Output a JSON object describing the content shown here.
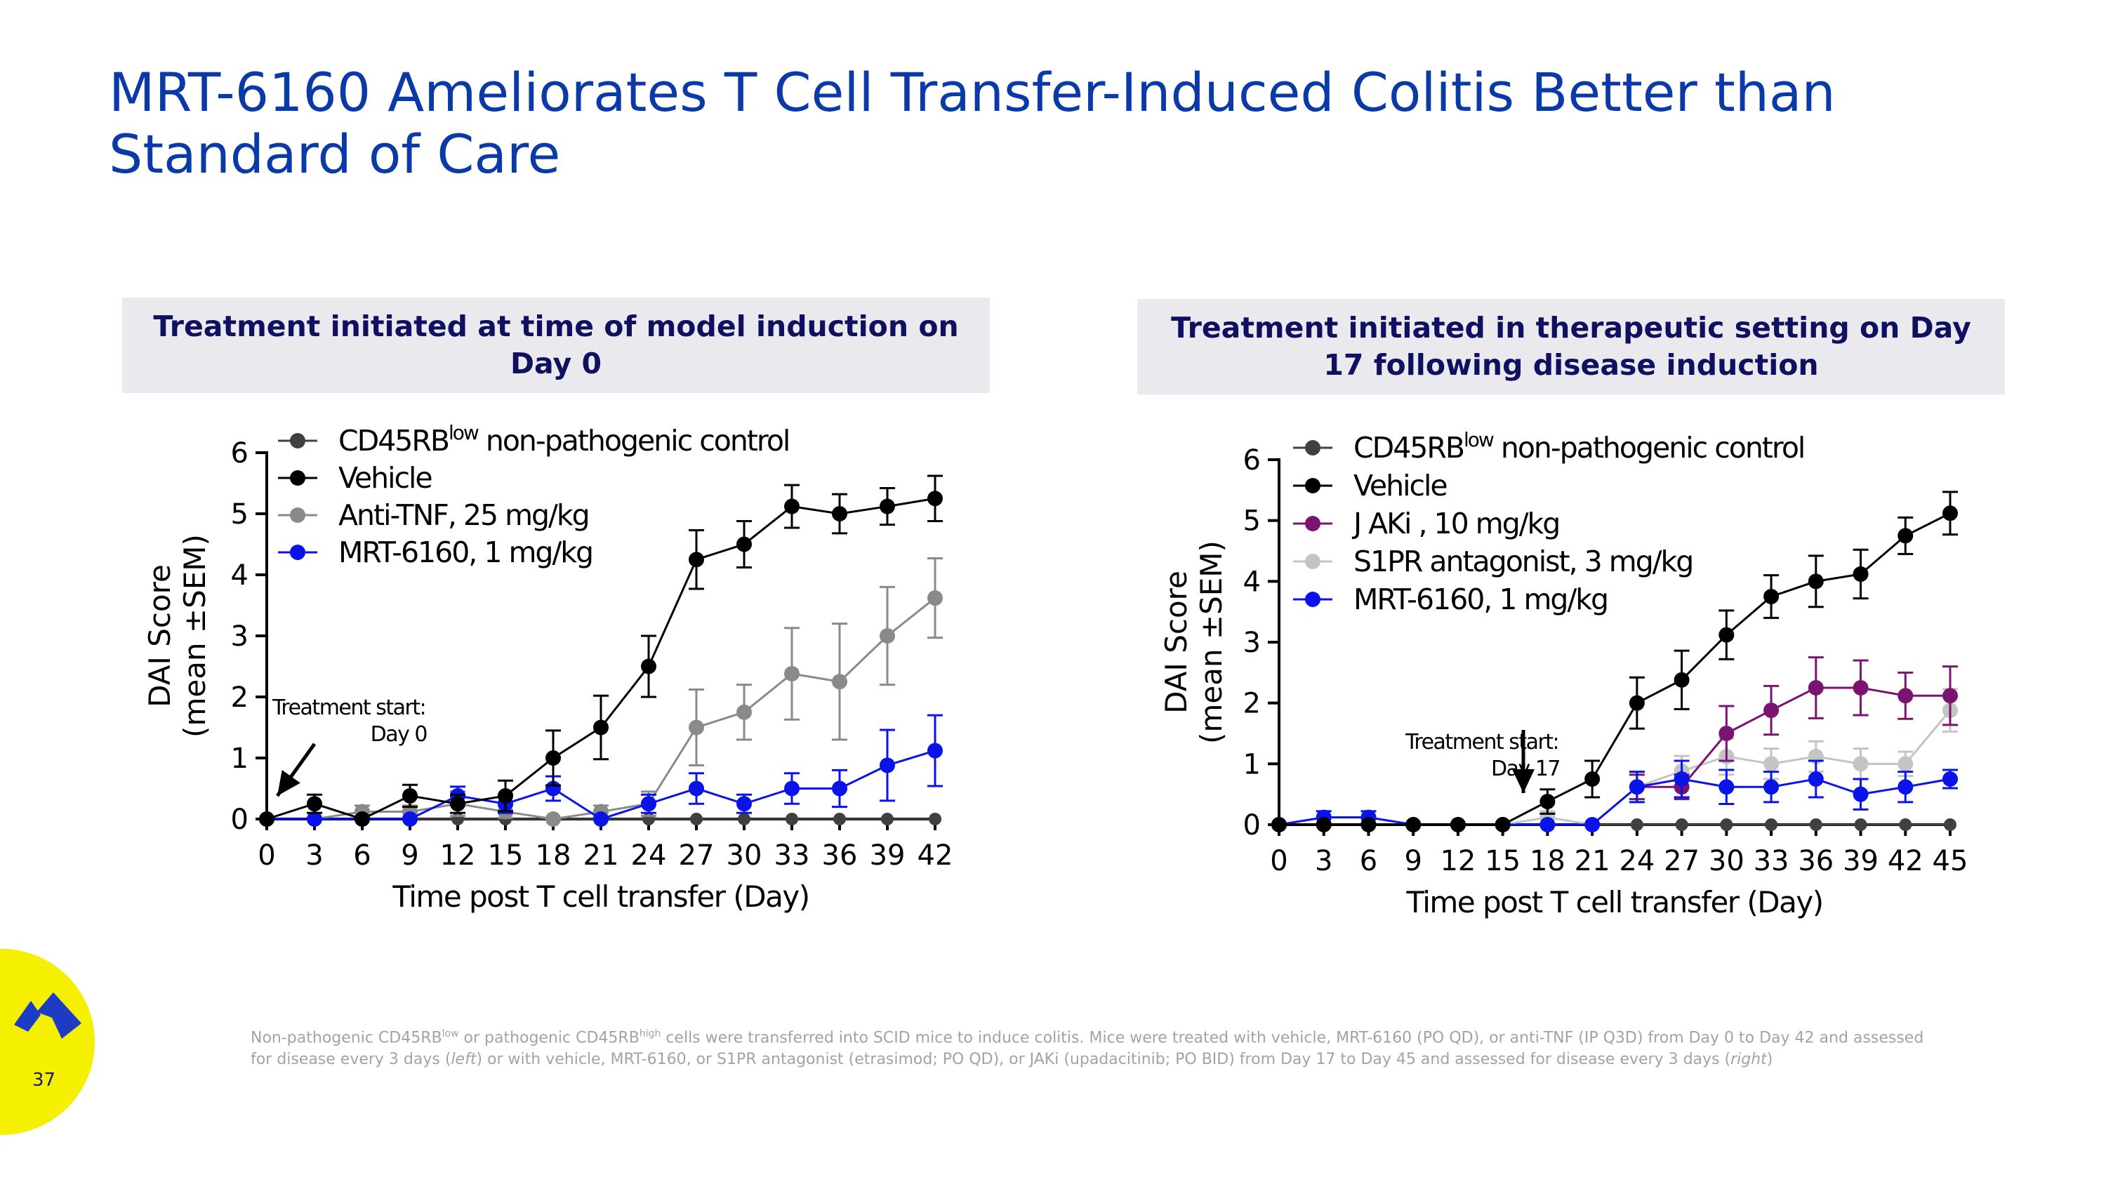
{
  "slide": {
    "title": "MRT-6160 Ameliorates T Cell Transfer-Induced Colitis Better than Standard of Care",
    "page_number": "37",
    "footnote": {
      "t1": "Non-pathogenic CD45RB",
      "s1": "low",
      "t2": " or pathogenic CD45RB",
      "s2": "high",
      "t3": " cells were transferred into SCID mice to induce colitis. Mice were treated with vehicle, MRT-6160 (PO QD), or anti-TNF (IP Q3D) from Day 0 to Day 42 and assessed for disease every 3 days (",
      "i1": "left",
      "t4": ") or with vehicle, MRT-6160, or S1PR antagonist (etrasimod; PO QD), or JAKi (upadacitinib; PO BID) from Day 17 to Day 45 and assessed for disease every 3 days (",
      "i2": "right",
      "t5": ")"
    },
    "logo": {
      "color": "#1d3cc6",
      "icon": "company-logo-icon",
      "background": "#f5f000"
    }
  },
  "chart_data": [
    {
      "type": "line",
      "header": "Treatment initiated at time of model induction on Day 0",
      "xlabel": "Time post T cell transfer (Day)",
      "ylabel_line1": "DAI Score",
      "ylabel_line2": "(mean ±SEM)",
      "xlim": [
        0,
        42
      ],
      "ylim": [
        0,
        6
      ],
      "x_ticks": [
        0,
        3,
        6,
        9,
        12,
        15,
        18,
        21,
        24,
        27,
        30,
        33,
        36,
        39,
        42
      ],
      "y_ticks": [
        0,
        1,
        2,
        3,
        4,
        5,
        6
      ],
      "x": [
        0,
        3,
        6,
        9,
        12,
        15,
        18,
        21,
        24,
        27,
        30,
        33,
        36,
        39,
        42
      ],
      "annotation": {
        "line1": "Treatment start:",
        "line2": "Day 0",
        "arrow_day": 0
      },
      "legend_position": "top-left",
      "series": [
        {
          "name": "CD45RB",
          "sup": "low",
          "suffix": " non-pathogenic control",
          "color": "#404040",
          "marker_r": 9,
          "values": [
            0,
            0,
            0,
            0,
            0,
            0,
            0,
            0,
            0,
            0,
            0,
            0,
            0,
            0,
            0
          ],
          "err": [
            0,
            0,
            0,
            0,
            0,
            0,
            0,
            0,
            0,
            0,
            0,
            0,
            0,
            0,
            0
          ]
        },
        {
          "name": "Anti-TNF, 25 mg/kg",
          "sup": "",
          "suffix": "",
          "color": "#8a8a8a",
          "marker_r": 11,
          "values": [
            0,
            0,
            0.12,
            0.12,
            0.25,
            0.12,
            0,
            0.12,
            0.25,
            1.5,
            1.75,
            2.38,
            2.25,
            3.0,
            3.62
          ],
          "err": [
            0,
            0,
            0.1,
            0.1,
            0.2,
            0.1,
            0,
            0.1,
            0.2,
            0.62,
            0.45,
            0.75,
            0.95,
            0.8,
            0.65
          ]
        },
        {
          "name": "MRT-6160, 1 mg/kg",
          "sup": "",
          "suffix": "",
          "color": "#0a14e8",
          "marker_r": 11,
          "values": [
            0,
            0,
            0,
            0,
            0.38,
            0.25,
            0.5,
            0,
            0.25,
            0.5,
            0.25,
            0.5,
            0.5,
            0.88,
            1.12
          ],
          "err": [
            0,
            0,
            0,
            0,
            0.15,
            0.15,
            0.2,
            0,
            0.15,
            0.25,
            0.15,
            0.25,
            0.3,
            0.58,
            0.58
          ]
        },
        {
          "name": "Vehicle",
          "sup": "",
          "suffix": "",
          "color": "#000000",
          "marker_r": 11,
          "values": [
            0,
            0.25,
            0,
            0.38,
            0.25,
            0.38,
            1.0,
            1.5,
            2.5,
            4.25,
            4.5,
            5.12,
            5.0,
            5.12,
            5.25
          ],
          "err": [
            0,
            0.15,
            0,
            0.18,
            0.15,
            0.25,
            0.45,
            0.52,
            0.5,
            0.48,
            0.38,
            0.35,
            0.32,
            0.3,
            0.37
          ]
        }
      ],
      "legend_order": [
        0,
        3,
        1,
        2
      ]
    },
    {
      "type": "line",
      "header": "Treatment initiated in therapeutic setting on Day 17 following disease induction",
      "xlabel": "Time post T cell transfer (Day)",
      "ylabel_line1": "DAI Score",
      "ylabel_line2": "(mean ±SEM)",
      "xlim": [
        0,
        45
      ],
      "ylim": [
        0,
        6
      ],
      "x_ticks": [
        0,
        3,
        6,
        9,
        12,
        15,
        18,
        21,
        24,
        27,
        30,
        33,
        36,
        39,
        42,
        45
      ],
      "y_ticks": [
        0,
        1,
        2,
        3,
        4,
        5,
        6
      ],
      "x": [
        0,
        3,
        6,
        9,
        12,
        15,
        18,
        21,
        24,
        27,
        30,
        33,
        36,
        39,
        42,
        45
      ],
      "annotation": {
        "line1": "Treatment start:",
        "line2": "Day 17",
        "arrow_day": 16.5
      },
      "legend_position": "top-left",
      "series": [
        {
          "name": "CD45RB",
          "sup": "low",
          "suffix": " non-pathogenic control",
          "color": "#404040",
          "marker_r": 9,
          "values": [
            0,
            0,
            0,
            0,
            0,
            0,
            0,
            0,
            0,
            0,
            0,
            0,
            0,
            0,
            0,
            0
          ],
          "err": [
            0,
            0,
            0,
            0,
            0,
            0,
            0,
            0,
            0,
            0,
            0,
            0,
            0,
            0,
            0,
            0
          ]
        },
        {
          "name": "S1PR antagonist, 3 mg/kg",
          "sup": "",
          "suffix": "",
          "color": "#c4c4c4",
          "marker_r": 11,
          "values": [
            0,
            0.12,
            0.12,
            0,
            0,
            0,
            0.12,
            0,
            0.62,
            0.88,
            1.12,
            1.0,
            1.12,
            1.0,
            1.0,
            1.88
          ],
          "err": [
            0,
            0.1,
            0.1,
            0,
            0,
            0,
            0.1,
            0,
            0.25,
            0.25,
            0.3,
            0.25,
            0.25,
            0.25,
            0.2,
            0.35
          ]
        },
        {
          "name": "J AKi , 10 mg/kg",
          "sup": "",
          "suffix": "",
          "color": "#7a1470",
          "marker_r": 11,
          "values": [
            null,
            null,
            null,
            null,
            null,
            null,
            null,
            null,
            0.62,
            0.62,
            1.5,
            1.88,
            2.25,
            2.25,
            2.12,
            2.12
          ],
          "err": [
            0,
            0,
            0,
            0,
            0,
            0,
            0,
            0,
            0.2,
            0.2,
            0.45,
            0.4,
            0.5,
            0.45,
            0.38,
            0.48
          ]
        },
        {
          "name": "MRT-6160, 1 mg/kg",
          "sup": "",
          "suffix": "",
          "color": "#0a14e8",
          "marker_r": 11,
          "values": [
            0,
            0.12,
            0.12,
            0,
            0,
            0,
            0,
            0,
            0.62,
            0.75,
            0.62,
            0.62,
            0.75,
            0.5,
            0.62,
            0.75
          ],
          "err": [
            0,
            0.1,
            0.1,
            0,
            0,
            0,
            0,
            0,
            0.25,
            0.3,
            0.28,
            0.25,
            0.3,
            0.25,
            0.25,
            0.15
          ]
        },
        {
          "name": "Vehicle",
          "sup": "",
          "suffix": "",
          "color": "#000000",
          "marker_r": 11,
          "values": [
            0,
            0,
            0,
            0,
            0,
            0,
            0.38,
            0.75,
            2.0,
            2.38,
            3.12,
            3.75,
            4.0,
            4.12,
            4.75,
            5.12
          ],
          "err": [
            0,
            0,
            0,
            0,
            0,
            0,
            0.2,
            0.3,
            0.42,
            0.48,
            0.4,
            0.35,
            0.42,
            0.4,
            0.3,
            0.35
          ]
        }
      ],
      "legend_order": [
        0,
        4,
        2,
        1,
        3
      ]
    }
  ]
}
